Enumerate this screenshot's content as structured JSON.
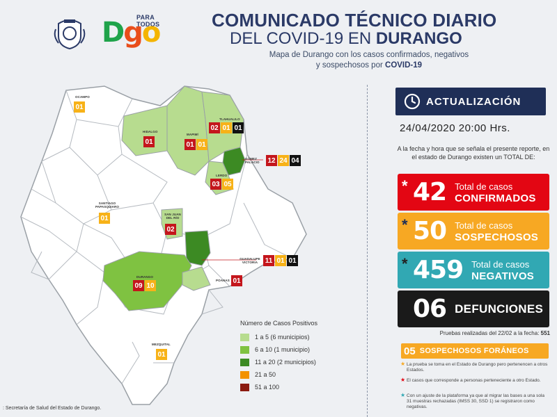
{
  "header": {
    "logo_small": "PARA TODOS",
    "logo_main": [
      "D",
      "g",
      "o"
    ],
    "title_line1": "COMUNICADO TÉCNICO DIARIO",
    "title_line2a": "DEL COVID-19 EN ",
    "title_line2b": "DURANGO",
    "subtitle_a": "Mapa de Durango con los casos confirmados, negativos",
    "subtitle_b": "y sospechosos por ",
    "subtitle_c": "COVID-19"
  },
  "map": {
    "municipios": [
      {
        "name": "OCAMPO",
        "values": [
          {
            "v": "01",
            "c": "y"
          }
        ]
      },
      {
        "name": "HIDALGO",
        "values": [
          {
            "v": "01",
            "c": "r"
          }
        ]
      },
      {
        "name": "MAPIMÍ",
        "values": [
          {
            "v": "01",
            "c": "r"
          },
          {
            "v": "01",
            "c": "y"
          }
        ]
      },
      {
        "name": "TLAHUALILO",
        "values": [
          {
            "v": "02",
            "c": "r"
          },
          {
            "v": "01",
            "c": "y"
          },
          {
            "v": "01",
            "c": "k"
          }
        ]
      },
      {
        "name": "GÓMEZ PALACIO",
        "values": [
          {
            "v": "12",
            "c": "r"
          },
          {
            "v": "24",
            "c": "y"
          },
          {
            "v": "04",
            "c": "k"
          }
        ]
      },
      {
        "name": "LERDO",
        "values": [
          {
            "v": "03",
            "c": "r"
          },
          {
            "v": "05",
            "c": "y"
          }
        ]
      },
      {
        "name": "SANTIAGO PAPASQUIARO",
        "values": [
          {
            "v": "01",
            "c": "y"
          }
        ]
      },
      {
        "name": "SAN JUAN DEL RÍO",
        "values": [
          {
            "v": "02",
            "c": "r"
          }
        ]
      },
      {
        "name": "GUADALUPE VICTORIA",
        "values": [
          {
            "v": "11",
            "c": "r"
          },
          {
            "v": "01",
            "c": "y"
          },
          {
            "v": "01",
            "c": "k"
          }
        ]
      },
      {
        "name": "DURANGO",
        "values": [
          {
            "v": "09",
            "c": "r"
          },
          {
            "v": "10",
            "c": "y"
          }
        ]
      },
      {
        "name": "POANAS",
        "values": [
          {
            "v": "01",
            "c": "r"
          }
        ]
      },
      {
        "name": "MEZQUITAL",
        "values": [
          {
            "v": "01",
            "c": "y"
          }
        ]
      }
    ],
    "legend_title": "Número de Casos Positivos",
    "legend": [
      {
        "label": "1 a 5   (6 municipios)",
        "color": "#b7dc8f"
      },
      {
        "label": "6 a 10   (1 municipio)",
        "color": "#7fc241"
      },
      {
        "label": "11 a 20  (2 municipios)",
        "color": "#3c8a23"
      },
      {
        "label": "21 a 50",
        "color": "#f39200"
      },
      {
        "label": "51 a 100",
        "color": "#8b1a10"
      }
    ],
    "source": ": Secretaría de Salud del Estado de Durango."
  },
  "panel": {
    "update_label": "ACTUALIZACIÓN",
    "datetime": "24/04/2020  20:00 Hrs.",
    "intro": "A la fecha y hora que se señala el presente reporte, en el estado de Durango existen un TOTAL DE:",
    "confirmados": {
      "ast": "*",
      "num": "42",
      "l1": "Total de casos",
      "l2": "CONFIRMADOS"
    },
    "sospechosos": {
      "ast": "*",
      "num": "50",
      "l1": "Total de casos",
      "l2": "SOSPECHOSOS"
    },
    "negativos": {
      "ast": "*",
      "num": "459",
      "l1": "Total de casos",
      "l2": "NEGATIVOS"
    },
    "defunciones": {
      "num": "06",
      "l2": "DEFUNCIONES"
    },
    "pruebas_text": "Pruebas realizadas del 22/02 a la fecha: ",
    "pruebas_num": "551",
    "foraneos_num": "05",
    "foraneos_label": "SOSPECHOSOS FORÁNEOS",
    "note1": "La prueba se toma en el Estado de Durango pero pertenencen a otros Estados.",
    "note2": "El casos que corresponde a personas perteneciente a otro Estado.",
    "note3": "Con un ajuste de la plataforma ya que al migrar las bases a una sola 31 muestras rechazadas (IMSS 30, SSD 1) se registraron como negativas."
  },
  "colors": {
    "navy": "#1f2f57",
    "red": "#e30613",
    "orange": "#f7a823",
    "teal": "#31a8b3",
    "dark": "#1a1a1a"
  }
}
